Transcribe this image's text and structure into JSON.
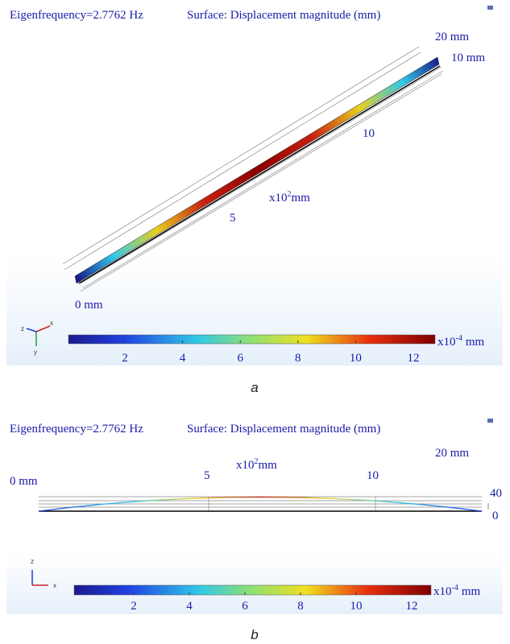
{
  "panels": [
    {
      "caption": "a",
      "header": {
        "frequency": "Eigenfrequency=2.7762 Hz",
        "surface": "Surface: Displacement magnitude (mm)"
      },
      "labels": {
        "width_top": "20 mm",
        "width_side": "10 mm",
        "start": "0 mm",
        "mid": "5",
        "end": "10",
        "scale": {
          "base": "x10",
          "sup": "2",
          "unit": "mm"
        }
      },
      "axes": {
        "z": "z",
        "x": "x",
        "y": "y"
      },
      "colorbar": {
        "ticks": [
          2,
          4,
          6,
          8,
          10,
          12
        ],
        "unit": {
          "base": "x10",
          "sup": "-4",
          "unit": "mm"
        }
      }
    },
    {
      "caption": "b",
      "header": {
        "frequency": "Eigenfrequency=2.7762 Hz",
        "surface": "Surface: Displacement magnitude (mm)"
      },
      "labels": {
        "width_top": "20 mm",
        "start": "0 mm",
        "mid": "5",
        "end": "10",
        "scale": {
          "base": "x10",
          "sup": "2",
          "unit": "mm"
        },
        "height_top": "40",
        "height_bottom": "0"
      },
      "axes": {
        "z": "z",
        "x": "x"
      },
      "colorbar": {
        "ticks": [
          2,
          4,
          6,
          8,
          10,
          12
        ],
        "unit": {
          "base": "x10",
          "sup": "-4",
          "unit": "mm"
        }
      }
    }
  ]
}
